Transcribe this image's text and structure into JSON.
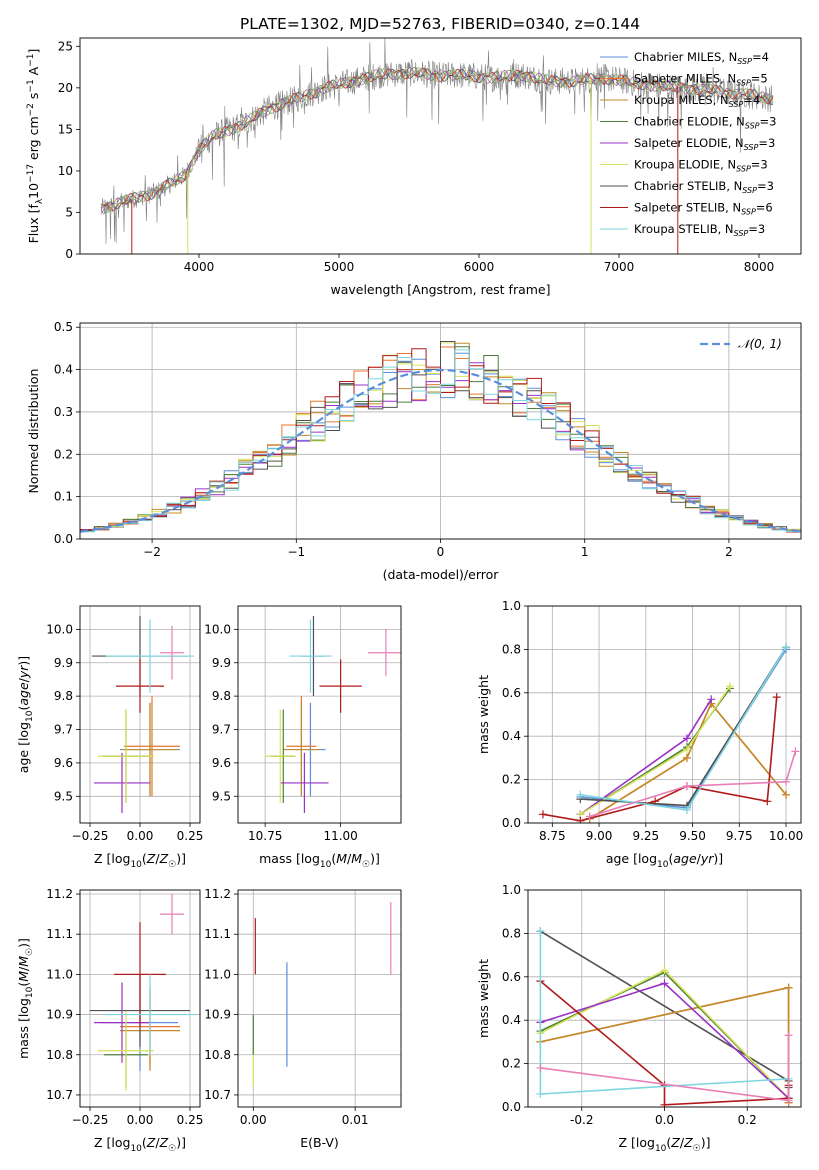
{
  "figure": {
    "title": "PLATE=1302, MJD=52763, FIBERID=0340, z=0.144"
  },
  "colors": {
    "Chabrier MILES": "#5b8fd9",
    "Salpeter MILES": "#e8762c",
    "Kroupa MILES": "#c28a2a",
    "Chabrier ELODIE": "#4c7f3a",
    "Salpeter ELODIE": "#9b30c6",
    "Kroupa ELODIE": "#d6e35a",
    "Chabrier STELIB": "#505050",
    "Salpeter STELIB": "#b01a1a",
    "Kroupa STELIB": "#7fd6e0"
  },
  "chart_data": [
    {
      "id": "spectrum",
      "type": "line",
      "xlabel": "wavelength [Angstrom, rest frame]",
      "ylabel": "Flux [f_λ 10^-17 erg cm^-2 s^-1 A^-1]",
      "xlim": [
        3150,
        8300
      ],
      "ylim": [
        0,
        26
      ],
      "xticks": [
        4000,
        5000,
        6000,
        7000,
        8000
      ],
      "yticks": [
        0,
        5,
        10,
        15,
        20,
        25
      ],
      "legend_position": "right",
      "legend": [
        {
          "series": "Chabrier MILES",
          "label": "Chabrier MILES, N",
          "sub": "SSP",
          "tail": "=4"
        },
        {
          "series": "Salpeter MILES",
          "label": "Salpeter MILES, N",
          "sub": "SSP",
          "tail": "=5"
        },
        {
          "series": "Kroupa MILES",
          "label": "Kroupa MILES, N",
          "sub": "SSP",
          "tail": "=4"
        },
        {
          "series": "Chabrier ELODIE",
          "label": "Chabrier ELODIE, N",
          "sub": "SSP",
          "tail": "=3"
        },
        {
          "series": "Salpeter ELODIE",
          "label": "Salpeter ELODIE, N",
          "sub": "SSP",
          "tail": "=3"
        },
        {
          "series": "Kroupa ELODIE",
          "label": "Kroupa ELODIE, N",
          "sub": "SSP",
          "tail": "=3"
        },
        {
          "series": "Chabrier STELIB",
          "label": "Chabrier STELIB, N",
          "sub": "SSP",
          "tail": "=3"
        },
        {
          "series": "Salpeter STELIB",
          "label": "Salpeter STELIB, N",
          "sub": "SSP",
          "tail": "=6"
        },
        {
          "series": "Kroupa STELIB",
          "label": "Kroupa STELIB, N",
          "sub": "SSP",
          "tail": "=3"
        }
      ],
      "continuum": [
        [
          3300,
          5.5
        ],
        [
          3500,
          6.5
        ],
        [
          3700,
          7.5
        ],
        [
          3900,
          9.5
        ],
        [
          4000,
          12.5
        ],
        [
          4100,
          14.2
        ],
        [
          4300,
          15.5
        ],
        [
          4500,
          17.5
        ],
        [
          4700,
          18.7
        ],
        [
          4900,
          20.0
        ],
        [
          5100,
          20.8
        ],
        [
          5300,
          21.6
        ],
        [
          5500,
          21.8
        ],
        [
          5700,
          21.5
        ],
        [
          5900,
          21.5
        ],
        [
          6100,
          21.2
        ],
        [
          6300,
          21.6
        ],
        [
          6500,
          20.8
        ],
        [
          6700,
          20.8
        ],
        [
          6900,
          21.2
        ],
        [
          7100,
          20.6
        ],
        [
          7300,
          20.2
        ],
        [
          7600,
          19.8
        ],
        [
          7900,
          19.2
        ],
        [
          8100,
          18.7
        ]
      ]
    },
    {
      "id": "residuals",
      "type": "step",
      "xlabel": "(data-model)/error",
      "ylabel": "Normed distribution",
      "xlim": [
        -2.5,
        2.5
      ],
      "ylim": [
        0,
        0.51
      ],
      "xticks": [
        -2,
        -1,
        0,
        1,
        2
      ],
      "yticks": [
        0.0,
        0.1,
        0.2,
        0.3,
        0.4,
        0.5
      ],
      "legend": "𝒩(0, 1)",
      "legend_position": "top-right",
      "bin_width": 0.1,
      "x_start": -2.5
    },
    {
      "id": "age-vs-Z",
      "type": "errorbar",
      "xlabel": "Z [log10(Z/Z☉)]",
      "ylabel": "age [log10(age/yr)]",
      "xlim": [
        -0.3,
        0.3
      ],
      "ylim": [
        9.42,
        10.07
      ],
      "xticks": [
        -0.25,
        0.0,
        0.25
      ],
      "yticks": [
        9.5,
        9.6,
        9.7,
        9.8,
        9.9,
        10.0
      ],
      "points": [
        {
          "series": "Chabrier MILES",
          "x": 0.05,
          "xerr": 0.15,
          "y": 9.64,
          "yerr": 0.14
        },
        {
          "series": "Salpeter MILES",
          "x": 0.06,
          "xerr": 0.14,
          "y": 9.65,
          "yerr": 0.15
        },
        {
          "series": "Kroupa MILES",
          "x": 0.05,
          "xerr": 0.14,
          "y": 9.64,
          "yerr": 0.14
        },
        {
          "series": "Chabrier ELODIE",
          "x": -0.07,
          "xerr": 0.12,
          "y": 9.62,
          "yerr": 0.14
        },
        {
          "series": "Salpeter ELODIE",
          "x": -0.09,
          "xerr": 0.14,
          "y": 9.54,
          "yerr": 0.09
        },
        {
          "series": "Kroupa ELODIE",
          "x": -0.07,
          "xerr": 0.14,
          "y": 9.62,
          "yerr": 0.14
        },
        {
          "series": "Chabrier STELIB",
          "x": 0.0,
          "xerr": 0.24,
          "y": 9.92,
          "yerr": 0.12
        },
        {
          "series": "Salpeter STELIB",
          "x": 0.0,
          "xerr": 0.12,
          "y": 9.83,
          "yerr": 0.08
        },
        {
          "series": "Kroupa STELIB",
          "x": 0.05,
          "xerr": 0.22,
          "y": 9.92,
          "yerr": 0.11
        },
        {
          "series": "Salpeter STELIB pink",
          "x": 0.16,
          "xerr": 0.06,
          "y": 9.93,
          "yerr": 0.08
        }
      ]
    },
    {
      "id": "age-vs-mass",
      "type": "errorbar",
      "xlabel": "mass [log10(M/M☉)]",
      "ylabel": "",
      "xlim": [
        10.66,
        11.2
      ],
      "ylim": [
        9.42,
        10.07
      ],
      "xticks": [
        10.75,
        11.0
      ],
      "yticks": [
        9.5,
        9.6,
        9.7,
        9.8,
        9.9,
        10.0
      ],
      "points": [
        {
          "series": "Chabrier MILES",
          "x": 10.9,
          "xerr": 0.05,
          "y": 9.64,
          "yerr": 0.14
        },
        {
          "series": "Salpeter MILES",
          "x": 10.87,
          "xerr": 0.05,
          "y": 9.65,
          "yerr": 0.15
        },
        {
          "series": "Kroupa MILES",
          "x": 10.87,
          "xerr": 0.06,
          "y": 9.64,
          "yerr": 0.14
        },
        {
          "series": "Chabrier ELODIE",
          "x": 10.81,
          "xerr": 0.04,
          "y": 9.62,
          "yerr": 0.14
        },
        {
          "series": "Salpeter ELODIE",
          "x": 10.88,
          "xerr": 0.08,
          "y": 9.54,
          "yerr": 0.09
        },
        {
          "series": "Kroupa ELODIE",
          "x": 10.8,
          "xerr": 0.05,
          "y": 9.62,
          "yerr": 0.14
        },
        {
          "series": "Chabrier STELIB",
          "x": 10.91,
          "xerr": 0.04,
          "y": 9.92,
          "yerr": 0.12
        },
        {
          "series": "Salpeter STELIB",
          "x": 11.0,
          "xerr": 0.07,
          "y": 9.83,
          "yerr": 0.08
        },
        {
          "series": "Kroupa STELIB",
          "x": 10.9,
          "xerr": 0.07,
          "y": 9.92,
          "yerr": 0.11
        },
        {
          "series": "Salpeter STELIB pink",
          "x": 11.15,
          "xerr": 0.06,
          "y": 9.93,
          "yerr": 0.07
        }
      ]
    },
    {
      "id": "weight-vs-age",
      "type": "line",
      "xlabel": "age [log10(age/yr)]",
      "ylabel": "mass weight",
      "xlim": [
        8.62,
        10.08
      ],
      "ylim": [
        0,
        1.0
      ],
      "xticks": [
        8.75,
        9.0,
        9.25,
        9.5,
        9.75,
        10.0
      ],
      "yticks": [
        0.0,
        0.2,
        0.4,
        0.6,
        0.8,
        1.0
      ],
      "series": [
        {
          "name": "Chabrier MILES",
          "x": [
            8.9,
            9.47,
            10.0
          ],
          "y": [
            0.12,
            0.07,
            0.8
          ]
        },
        {
          "name": "Salpeter MILES",
          "x": [
            8.95,
            9.47,
            9.6,
            10.0
          ],
          "y": [
            0.02,
            0.3,
            0.55,
            0.13
          ]
        },
        {
          "name": "Kroupa MILES",
          "x": [
            8.95,
            9.47,
            9.6,
            10.0
          ],
          "y": [
            0.02,
            0.3,
            0.55,
            0.13
          ]
        },
        {
          "name": "Chabrier ELODIE",
          "x": [
            8.9,
            9.47,
            9.7
          ],
          "y": [
            0.04,
            0.35,
            0.62
          ]
        },
        {
          "name": "Salpeter ELODIE",
          "x": [
            8.9,
            9.47,
            9.6
          ],
          "y": [
            0.04,
            0.39,
            0.57
          ]
        },
        {
          "name": "Kroupa ELODIE",
          "x": [
            8.9,
            9.47,
            9.7
          ],
          "y": [
            0.04,
            0.34,
            0.63
          ]
        },
        {
          "name": "Chabrier STELIB",
          "x": [
            8.9,
            9.47,
            10.0
          ],
          "y": [
            0.11,
            0.08,
            0.81
          ]
        },
        {
          "name": "Salpeter STELIB",
          "x": [
            8.7,
            8.9,
            9.3,
            9.47,
            9.9,
            9.95
          ],
          "y": [
            0.04,
            0.01,
            0.1,
            0.17,
            0.1,
            0.58
          ]
        },
        {
          "name": "Kroupa STELIB",
          "x": [
            8.9,
            9.47,
            10.0
          ],
          "y": [
            0.13,
            0.06,
            0.81
          ]
        },
        {
          "name": "Salpeter STELIB pink",
          "x": [
            8.95,
            9.47,
            10.0,
            10.05
          ],
          "y": [
            0.03,
            0.17,
            0.19,
            0.33
          ]
        }
      ]
    },
    {
      "id": "mass-vs-Z",
      "type": "errorbar",
      "xlabel": "Z [log10(Z/Z☉)]",
      "ylabel": "mass [log10(M/M☉)]",
      "xlim": [
        -0.3,
        0.3
      ],
      "ylim": [
        10.67,
        11.21
      ],
      "xticks": [
        -0.25,
        0.0,
        0.25
      ],
      "yticks": [
        10.7,
        10.8,
        10.9,
        11.0,
        11.1,
        11.2
      ],
      "points": [
        {
          "series": "Chabrier MILES",
          "x": 0.0,
          "xerr": 0.19,
          "y": 10.88,
          "yerr": 0.12
        },
        {
          "series": "Salpeter MILES",
          "x": 0.05,
          "xerr": 0.15,
          "y": 10.87,
          "yerr": 0.1
        },
        {
          "series": "Kroupa MILES",
          "x": 0.05,
          "xerr": 0.15,
          "y": 10.86,
          "yerr": 0.1
        },
        {
          "series": "Chabrier ELODIE",
          "x": -0.07,
          "xerr": 0.11,
          "y": 10.8,
          "yerr": 0.08
        },
        {
          "series": "Salpeter ELODIE",
          "x": -0.09,
          "xerr": 0.14,
          "y": 10.88,
          "yerr": 0.1
        },
        {
          "series": "Kroupa ELODIE",
          "x": -0.07,
          "xerr": 0.14,
          "y": 10.81,
          "yerr": 0.1
        },
        {
          "series": "Chabrier STELIB",
          "x": 0.0,
          "xerr": 0.25,
          "y": 10.91,
          "yerr": 0.09
        },
        {
          "series": "Salpeter STELIB",
          "x": 0.0,
          "xerr": 0.13,
          "y": 11.0,
          "yerr": 0.13
        },
        {
          "series": "Kroupa STELIB",
          "x": 0.05,
          "xerr": 0.23,
          "y": 10.9,
          "yerr": 0.1
        },
        {
          "series": "Salpeter STELIB pink",
          "x": 0.16,
          "xerr": 0.06,
          "y": 11.15,
          "yerr": 0.05
        }
      ]
    },
    {
      "id": "mass-vs-ebv",
      "type": "errorbar",
      "xlabel": "E(B-V)",
      "ylabel": "",
      "xlim": [
        -0.0015,
        0.0145
      ],
      "ylim": [
        10.67,
        11.21
      ],
      "xticks": [
        0.0,
        0.01
      ],
      "yticks": [
        10.7,
        10.8,
        10.9,
        11.0,
        11.1,
        11.2
      ],
      "points": [
        {
          "series": "Kroupa ELODIE",
          "x": 0.0,
          "y": 10.77,
          "yerr": 0.05
        },
        {
          "series": "Chabrier ELODIE",
          "x": 0.0,
          "y": 10.85,
          "yerr": 0.05
        },
        {
          "series": "Salpeter STELIB",
          "x": 0.0002,
          "y": 11.07,
          "yerr": 0.07
        },
        {
          "series": "Chabrier MILES",
          "x": 0.0033,
          "y": 10.9,
          "yerr": 0.13
        },
        {
          "series": "Salpeter STELIB pink",
          "x": 0.0135,
          "y": 11.09,
          "yerr": 0.09
        }
      ]
    },
    {
      "id": "weight-vs-Z",
      "type": "line",
      "xlabel": "Z [log10(Z/Z☉)]",
      "ylabel": "mass weight",
      "xlim": [
        -0.33,
        0.33
      ],
      "ylim": [
        0,
        1.0
      ],
      "xticks": [
        -0.2,
        0.0,
        0.2
      ],
      "yticks": [
        0.0,
        0.2,
        0.4,
        0.6,
        0.8,
        1.0
      ],
      "series": [
        {
          "name": "Chabrier STELIB",
          "x": [
            -0.3,
            0.3,
            0.3
          ],
          "y": [
            0.81,
            0.12,
            0.09
          ]
        },
        {
          "name": "Salpeter MILES",
          "x": [
            -0.3,
            0.3,
            0.3
          ],
          "y": [
            0.3,
            0.55,
            0.02
          ]
        },
        {
          "name": "Kroupa MILES",
          "x": [
            -0.3,
            0.3,
            0.3
          ],
          "y": [
            0.3,
            0.55,
            0.02
          ]
        },
        {
          "name": "Chabrier ELODIE",
          "x": [
            -0.3,
            0.0,
            0.3
          ],
          "y": [
            0.35,
            0.62,
            0.04
          ]
        },
        {
          "name": "Kroupa ELODIE",
          "x": [
            -0.3,
            0.0,
            0.3
          ],
          "y": [
            0.34,
            0.63,
            0.04
          ]
        },
        {
          "name": "Salpeter ELODIE",
          "x": [
            -0.3,
            0.0,
            0.3
          ],
          "y": [
            0.39,
            0.57,
            0.04
          ]
        },
        {
          "name": "Salpeter STELIB",
          "x": [
            -0.3,
            0.0,
            0.0,
            0.3,
            0.3
          ],
          "y": [
            0.58,
            0.1,
            0.01,
            0.04,
            0.1
          ]
        },
        {
          "name": "Kroupa STELIB",
          "x": [
            -0.3,
            -0.3,
            0.3
          ],
          "y": [
            0.81,
            0.06,
            0.13
          ]
        },
        {
          "name": "Salpeter STELIB pink",
          "x": [
            -0.3,
            0.3,
            0.3
          ],
          "y": [
            0.18,
            0.03,
            0.33
          ]
        }
      ]
    }
  ]
}
